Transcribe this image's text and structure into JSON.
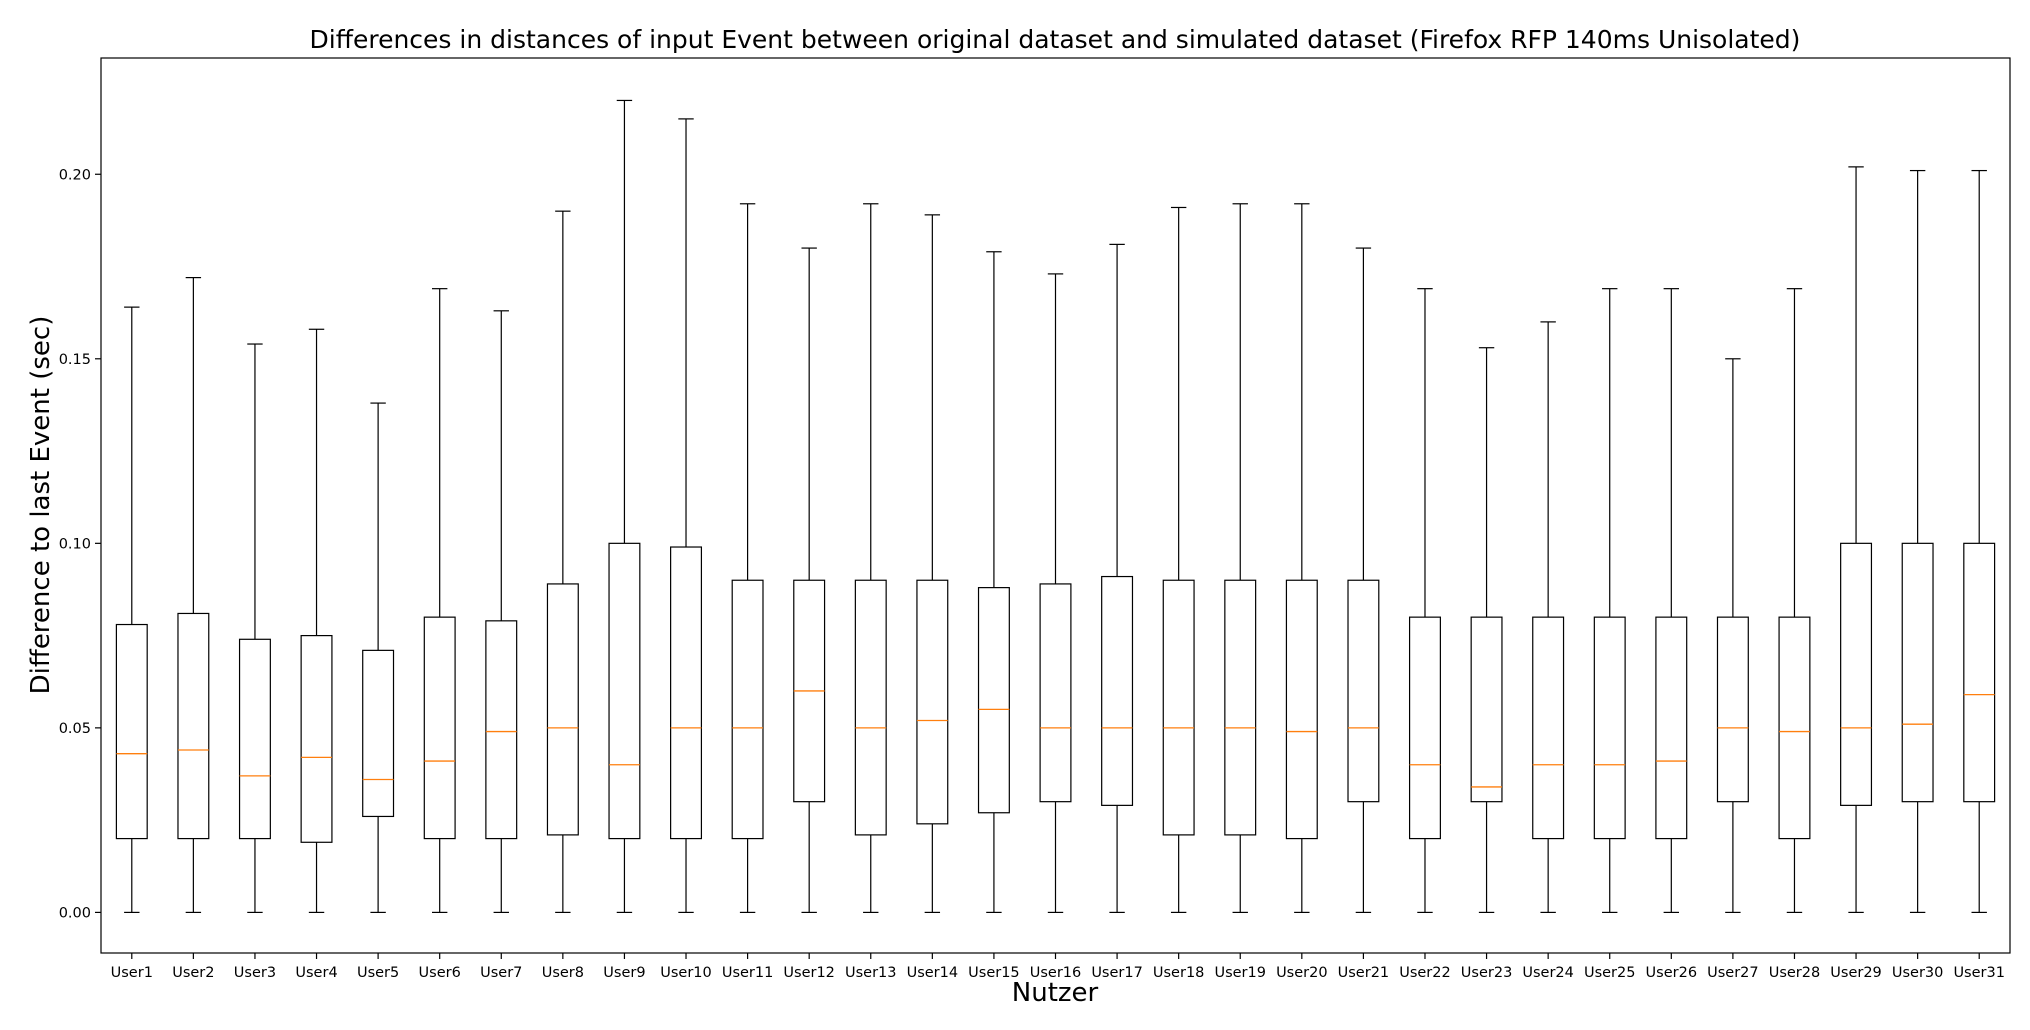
{
  "chart_data": {
    "type": "boxplot",
    "title": "Differences in distances of input Event between original dataset and simulated dataset (Firefox RFP 140ms Unisolated)",
    "xlabel": "Nutzer",
    "ylabel": "Difference to last Event (sec)",
    "ylim": [
      -0.011,
      0.2315
    ],
    "yticks": [
      0.0,
      0.05,
      0.1,
      0.15,
      0.2
    ],
    "ytick_labels": [
      "0.00",
      "0.05",
      "0.10",
      "0.15",
      "0.20"
    ],
    "grid": false,
    "colors": {
      "box": "#000000",
      "median": "#ff7f0e"
    },
    "categories": [
      "User1",
      "User2",
      "User3",
      "User4",
      "User5",
      "User6",
      "User7",
      "User8",
      "User9",
      "User10",
      "User11",
      "User12",
      "User13",
      "User14",
      "User15",
      "User16",
      "User17",
      "User18",
      "User19",
      "User20",
      "User21",
      "User22",
      "User23",
      "User24",
      "User25",
      "User26",
      "User27",
      "User28",
      "User29",
      "User30",
      "User31"
    ],
    "boxes": [
      {
        "whislo": 0.0,
        "q1": 0.02,
        "med": 0.043,
        "q3": 0.078,
        "whishi": 0.164
      },
      {
        "whislo": 0.0,
        "q1": 0.02,
        "med": 0.044,
        "q3": 0.081,
        "whishi": 0.172
      },
      {
        "whislo": 0.0,
        "q1": 0.02,
        "med": 0.037,
        "q3": 0.074,
        "whishi": 0.154
      },
      {
        "whislo": 0.0,
        "q1": 0.019,
        "med": 0.042,
        "q3": 0.075,
        "whishi": 0.158
      },
      {
        "whislo": 0.0,
        "q1": 0.026,
        "med": 0.036,
        "q3": 0.071,
        "whishi": 0.138
      },
      {
        "whislo": 0.0,
        "q1": 0.02,
        "med": 0.041,
        "q3": 0.08,
        "whishi": 0.169
      },
      {
        "whislo": 0.0,
        "q1": 0.02,
        "med": 0.049,
        "q3": 0.079,
        "whishi": 0.163
      },
      {
        "whislo": 0.0,
        "q1": 0.021,
        "med": 0.05,
        "q3": 0.089,
        "whishi": 0.19
      },
      {
        "whislo": 0.0,
        "q1": 0.02,
        "med": 0.04,
        "q3": 0.1,
        "whishi": 0.22
      },
      {
        "whislo": 0.0,
        "q1": 0.02,
        "med": 0.05,
        "q3": 0.099,
        "whishi": 0.215
      },
      {
        "whislo": 0.0,
        "q1": 0.02,
        "med": 0.05,
        "q3": 0.09,
        "whishi": 0.192
      },
      {
        "whislo": 0.0,
        "q1": 0.03,
        "med": 0.06,
        "q3": 0.09,
        "whishi": 0.18
      },
      {
        "whislo": 0.0,
        "q1": 0.021,
        "med": 0.05,
        "q3": 0.09,
        "whishi": 0.192
      },
      {
        "whislo": 0.0,
        "q1": 0.024,
        "med": 0.052,
        "q3": 0.09,
        "whishi": 0.189
      },
      {
        "whislo": 0.0,
        "q1": 0.027,
        "med": 0.055,
        "q3": 0.088,
        "whishi": 0.179
      },
      {
        "whislo": 0.0,
        "q1": 0.03,
        "med": 0.05,
        "q3": 0.089,
        "whishi": 0.173
      },
      {
        "whislo": 0.0,
        "q1": 0.029,
        "med": 0.05,
        "q3": 0.091,
        "whishi": 0.181
      },
      {
        "whislo": 0.0,
        "q1": 0.021,
        "med": 0.05,
        "q3": 0.09,
        "whishi": 0.191
      },
      {
        "whislo": 0.0,
        "q1": 0.021,
        "med": 0.05,
        "q3": 0.09,
        "whishi": 0.192
      },
      {
        "whislo": 0.0,
        "q1": 0.02,
        "med": 0.049,
        "q3": 0.09,
        "whishi": 0.192
      },
      {
        "whislo": 0.0,
        "q1": 0.03,
        "med": 0.05,
        "q3": 0.09,
        "whishi": 0.18
      },
      {
        "whislo": 0.0,
        "q1": 0.02,
        "med": 0.04,
        "q3": 0.08,
        "whishi": 0.169
      },
      {
        "whislo": 0.0,
        "q1": 0.03,
        "med": 0.034,
        "q3": 0.08,
        "whishi": 0.153
      },
      {
        "whislo": 0.0,
        "q1": 0.02,
        "med": 0.04,
        "q3": 0.08,
        "whishi": 0.16
      },
      {
        "whislo": 0.0,
        "q1": 0.02,
        "med": 0.04,
        "q3": 0.08,
        "whishi": 0.169
      },
      {
        "whislo": 0.0,
        "q1": 0.02,
        "med": 0.041,
        "q3": 0.08,
        "whishi": 0.169
      },
      {
        "whislo": 0.0,
        "q1": 0.03,
        "med": 0.05,
        "q3": 0.08,
        "whishi": 0.15
      },
      {
        "whislo": 0.0,
        "q1": 0.02,
        "med": 0.049,
        "q3": 0.08,
        "whishi": 0.169
      },
      {
        "whislo": 0.0,
        "q1": 0.029,
        "med": 0.05,
        "q3": 0.1,
        "whishi": 0.202
      },
      {
        "whislo": 0.0,
        "q1": 0.03,
        "med": 0.051,
        "q3": 0.1,
        "whishi": 0.201
      },
      {
        "whislo": 0.0,
        "q1": 0.03,
        "med": 0.059,
        "q3": 0.1,
        "whishi": 0.201
      }
    ]
  }
}
